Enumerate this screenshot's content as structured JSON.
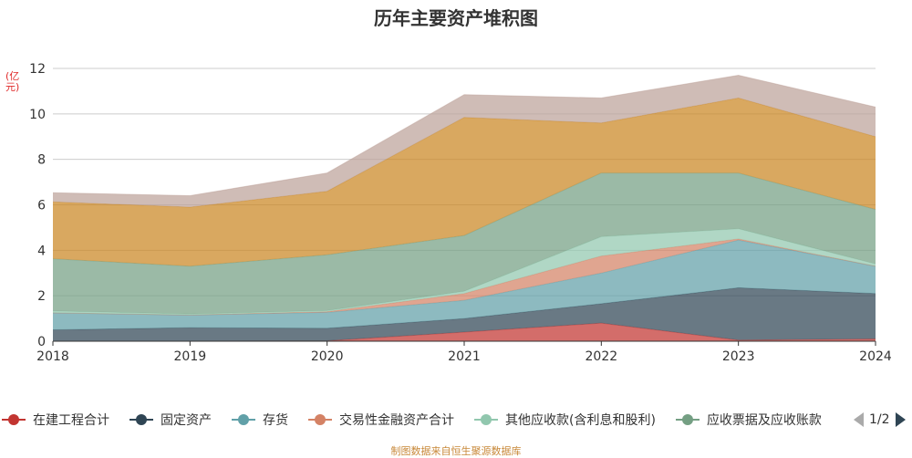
{
  "chart_data": {
    "type": "area",
    "stacked": true,
    "title": "历年主要资产堆积图",
    "unit_label": "(亿元)",
    "x": [
      "2018",
      "2019",
      "2020",
      "2021",
      "2022",
      "2023",
      "2024"
    ],
    "ylim": [
      0,
      12
    ],
    "yticks": [
      "0",
      "2",
      "4",
      "6",
      "8",
      "10",
      "12"
    ],
    "grid": true,
    "legend_position": "bottom",
    "series": [
      {
        "name": "在建工程合计",
        "color": "#c23531",
        "values": [
          0,
          0,
          0.02,
          0.4,
          0.8,
          0.05,
          0.1
        ]
      },
      {
        "name": "固定资产",
        "color": "#2f4554",
        "values": [
          0.5,
          0.6,
          0.55,
          0.6,
          0.85,
          2.3,
          2.0
        ]
      },
      {
        "name": "存货",
        "color": "#61a0a8",
        "values": [
          0.75,
          0.55,
          0.7,
          0.8,
          1.35,
          2.1,
          1.2
        ]
      },
      {
        "name": "交易性金融资产合计",
        "color": "#d48265",
        "values": [
          0,
          0,
          0.03,
          0.3,
          0.75,
          0.05,
          0
        ]
      },
      {
        "name": "其他应收款(含利息和股利)",
        "color": "#91c7ae",
        "values": [
          0.08,
          0.05,
          0.05,
          0.1,
          0.85,
          0.45,
          0.1
        ]
      },
      {
        "name": "应收票据及应收账款",
        "color": "#749f83",
        "values": [
          2.3,
          2.1,
          2.45,
          2.45,
          2.8,
          2.45,
          2.4
        ]
      },
      {
        "name": "",
        "color": "#ca8622",
        "values": [
          2.5,
          2.6,
          2.8,
          5.2,
          2.2,
          3.3,
          3.2
        ]
      },
      {
        "name": "",
        "color": "#bda29a",
        "values": [
          0.4,
          0.5,
          0.8,
          1.0,
          1.1,
          1.0,
          1.3
        ]
      }
    ]
  },
  "legend": {
    "items": [
      "在建工程合计",
      "固定资产",
      "存货",
      "交易性金融资产合计",
      "其他应收款(含利息和股利)",
      "应收票据及应收账款"
    ],
    "page": "1/2"
  },
  "source_note": "制图数据来自恒生聚源数据库",
  "colors": {
    "axis": "#333333",
    "grid": "#cccccc",
    "unit_label": "#e02a2a",
    "source_note": "#c8893a"
  }
}
